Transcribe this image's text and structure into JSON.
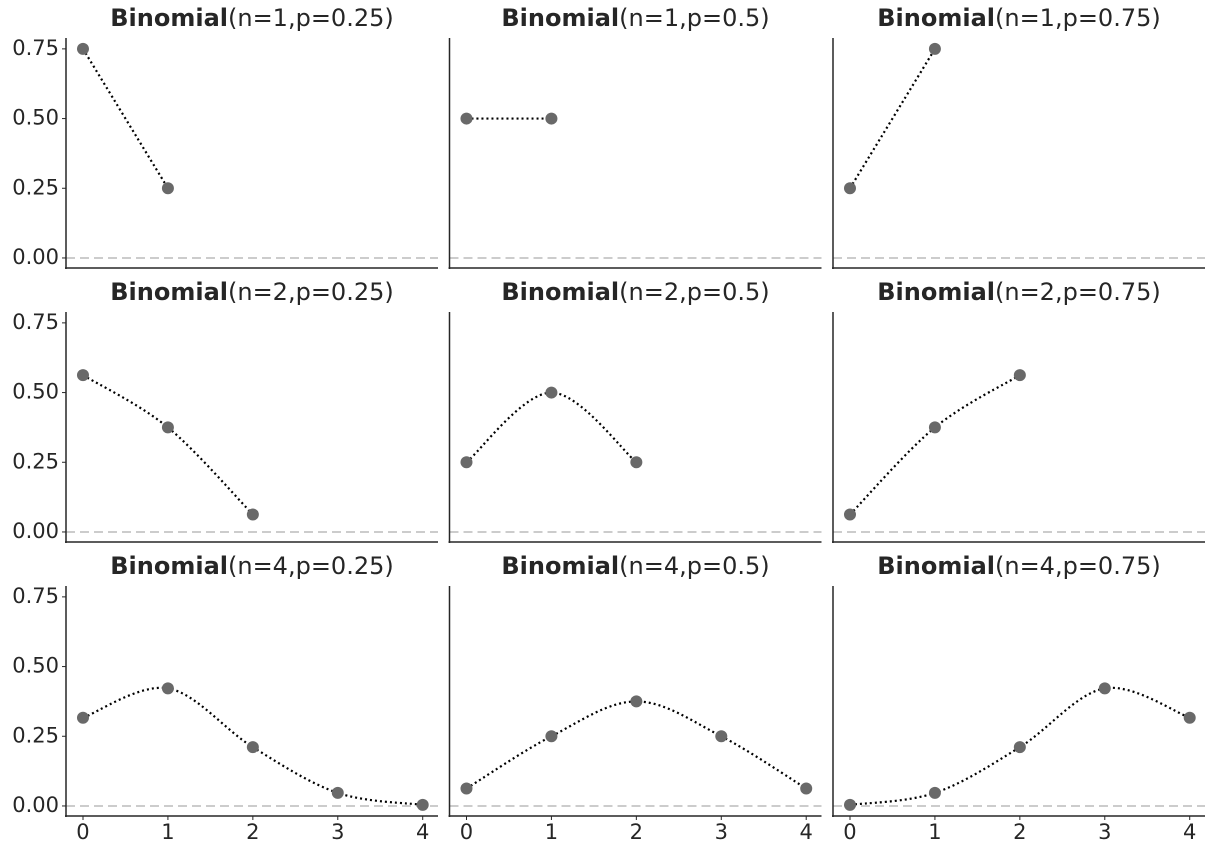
{
  "chart_data": [
    {
      "type": "line",
      "title": {
        "name": "Binomial",
        "params": "(n=1,p=0.25)"
      },
      "x": [
        0,
        1
      ],
      "values": [
        0.75,
        0.25
      ],
      "xlim": [
        -0.2,
        4.18
      ],
      "ylim": [
        -0.036,
        0.789
      ],
      "yticks": [
        {
          "value": 0,
          "label": "0.00"
        },
        {
          "value": 0.25,
          "label": "0.25"
        },
        {
          "value": 0.5,
          "label": "0.50"
        },
        {
          "value": 0.75,
          "label": "0.75"
        }
      ],
      "hline": 0,
      "color": "#696969"
    },
    {
      "type": "line",
      "title": {
        "name": "Binomial",
        "params": "(n=1,p=0.5)"
      },
      "x": [
        0,
        1
      ],
      "values": [
        0.5,
        0.5
      ],
      "xlim": [
        -0.2,
        4.18
      ],
      "ylim": [
        -0.036,
        0.789
      ],
      "hline": 0,
      "color": "#696969"
    },
    {
      "type": "line",
      "title": {
        "name": "Binomial",
        "params": "(n=1,p=0.75)"
      },
      "x": [
        0,
        1
      ],
      "values": [
        0.25,
        0.75
      ],
      "xlim": [
        -0.2,
        4.18
      ],
      "ylim": [
        -0.036,
        0.789
      ],
      "hline": 0,
      "color": "#696969"
    },
    {
      "type": "line",
      "title": {
        "name": "Binomial",
        "params": "(n=2,p=0.25)"
      },
      "x": [
        0,
        1,
        2
      ],
      "values": [
        0.5625,
        0.375,
        0.0625
      ],
      "xlim": [
        -0.2,
        4.18
      ],
      "ylim": [
        -0.036,
        0.789
      ],
      "yticks": [
        {
          "value": 0,
          "label": "0.00"
        },
        {
          "value": 0.25,
          "label": "0.25"
        },
        {
          "value": 0.5,
          "label": "0.50"
        },
        {
          "value": 0.75,
          "label": "0.75"
        }
      ],
      "hline": 0,
      "color": "#696969"
    },
    {
      "type": "line",
      "title": {
        "name": "Binomial",
        "params": "(n=2,p=0.5)"
      },
      "x": [
        0,
        1,
        2
      ],
      "values": [
        0.25,
        0.5,
        0.25
      ],
      "xlim": [
        -0.2,
        4.18
      ],
      "ylim": [
        -0.036,
        0.789
      ],
      "hline": 0,
      "color": "#696969"
    },
    {
      "type": "line",
      "title": {
        "name": "Binomial",
        "params": "(n=2,p=0.75)"
      },
      "x": [
        0,
        1,
        2
      ],
      "values": [
        0.0625,
        0.375,
        0.5625
      ],
      "xlim": [
        -0.2,
        4.18
      ],
      "ylim": [
        -0.036,
        0.789
      ],
      "hline": 0,
      "color": "#696969"
    },
    {
      "type": "line",
      "title": {
        "name": "Binomial",
        "params": "(n=4,p=0.25)"
      },
      "x": [
        0,
        1,
        2,
        3,
        4
      ],
      "values": [
        0.3164,
        0.4219,
        0.2109,
        0.0469,
        0.0039
      ],
      "xlim": [
        -0.2,
        4.18
      ],
      "ylim": [
        -0.036,
        0.789
      ],
      "yticks": [
        {
          "value": 0,
          "label": "0.00"
        },
        {
          "value": 0.25,
          "label": "0.25"
        },
        {
          "value": 0.5,
          "label": "0.50"
        },
        {
          "value": 0.75,
          "label": "0.75"
        }
      ],
      "xticks": [
        0,
        1,
        2,
        3,
        4
      ],
      "hline": 0,
      "color": "#696969"
    },
    {
      "type": "line",
      "title": {
        "name": "Binomial",
        "params": "(n=4,p=0.5)"
      },
      "x": [
        0,
        1,
        2,
        3,
        4
      ],
      "values": [
        0.0625,
        0.25,
        0.375,
        0.25,
        0.0625
      ],
      "xlim": [
        -0.2,
        4.18
      ],
      "ylim": [
        -0.036,
        0.789
      ],
      "xticks": [
        0,
        1,
        2,
        3,
        4
      ],
      "hline": 0,
      "color": "#696969"
    },
    {
      "type": "line",
      "title": {
        "name": "Binomial",
        "params": "(n=4,p=0.75)"
      },
      "x": [
        0,
        1,
        2,
        3,
        4
      ],
      "values": [
        0.0039,
        0.0469,
        0.2109,
        0.4219,
        0.3164
      ],
      "xlim": [
        -0.2,
        4.18
      ],
      "ylim": [
        -0.036,
        0.789
      ],
      "xticks": [
        0,
        1,
        2,
        3,
        4
      ],
      "hline": 0,
      "color": "#696969"
    }
  ]
}
